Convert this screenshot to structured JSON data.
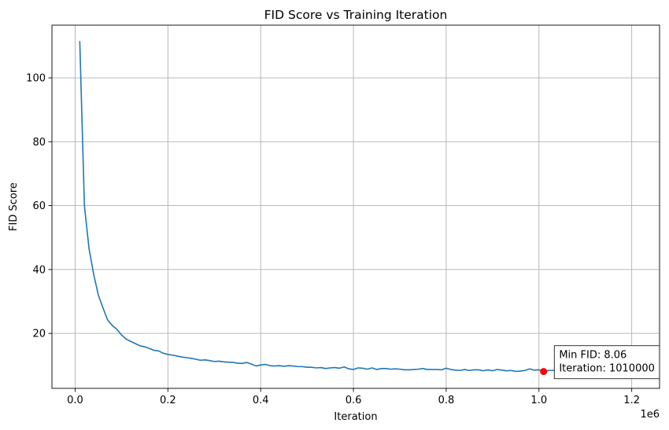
{
  "chart_data": {
    "type": "line",
    "title": "FID Score vs Training Iteration",
    "xlabel": "Iteration",
    "ylabel": "FID Score",
    "x_offset_text": "1e6",
    "xlim": [
      -50000,
      1260000
    ],
    "ylim": [
      2.8,
      116.5
    ],
    "x_ticks": [
      0,
      200000,
      400000,
      600000,
      800000,
      1000000,
      1200000
    ],
    "x_tick_labels": [
      "0.0",
      "0.2",
      "0.4",
      "0.6",
      "0.8",
      "1.0",
      "1.2"
    ],
    "y_ticks": [
      20,
      40,
      60,
      80,
      100
    ],
    "y_tick_labels": [
      "20",
      "40",
      "60",
      "80",
      "100"
    ],
    "grid": true,
    "line_color": "#1f77b4",
    "series": [
      {
        "x": [
          10000,
          20000,
          30000,
          40000,
          50000,
          60000,
          70000,
          80000,
          90000,
          100000,
          110000,
          120000,
          130000,
          140000,
          150000,
          160000,
          170000,
          180000,
          190000,
          200000,
          210000,
          220000,
          230000,
          240000,
          250000,
          260000,
          270000,
          280000,
          290000,
          300000,
          310000,
          320000,
          330000,
          340000,
          350000,
          360000,
          370000,
          380000,
          390000,
          400000,
          410000,
          420000,
          430000,
          440000,
          450000,
          460000,
          470000,
          480000,
          490000,
          500000,
          510000,
          520000,
          530000,
          540000,
          550000,
          560000,
          570000,
          580000,
          590000,
          600000,
          610000,
          620000,
          630000,
          640000,
          650000,
          660000,
          670000,
          680000,
          690000,
          700000,
          710000,
          720000,
          730000,
          740000,
          750000,
          760000,
          770000,
          780000,
          790000,
          800000,
          810000,
          820000,
          830000,
          840000,
          850000,
          860000,
          870000,
          880000,
          890000,
          900000,
          910000,
          920000,
          930000,
          940000,
          950000,
          960000,
          970000,
          980000,
          990000,
          1000000,
          1010000,
          1020000,
          1030000,
          1040000,
          1050000,
          1060000,
          1070000,
          1080000,
          1090000,
          1100000,
          1110000,
          1120000,
          1130000,
          1140000,
          1150000,
          1160000,
          1170000,
          1180000,
          1190000,
          1200000
        ],
        "y": [
          111.5,
          60.0,
          46.5,
          38.5,
          32.0,
          28.0,
          24.2,
          22.5,
          21.3,
          19.5,
          18.2,
          17.5,
          16.8,
          16.1,
          15.8,
          15.3,
          14.7,
          14.5,
          13.8,
          13.4,
          13.2,
          12.9,
          12.6,
          12.4,
          12.2,
          11.9,
          11.6,
          11.7,
          11.5,
          11.2,
          11.3,
          11.1,
          11.0,
          10.9,
          10.7,
          10.6,
          10.9,
          10.4,
          9.8,
          10.1,
          10.3,
          9.9,
          9.8,
          9.9,
          9.7,
          9.9,
          9.8,
          9.6,
          9.6,
          9.4,
          9.4,
          9.2,
          9.3,
          9.0,
          9.2,
          9.3,
          9.1,
          9.5,
          8.9,
          8.7,
          9.2,
          9.1,
          8.8,
          9.2,
          8.7,
          9.0,
          9.0,
          8.8,
          8.9,
          8.8,
          8.6,
          8.6,
          8.7,
          8.8,
          9.0,
          8.7,
          8.7,
          8.7,
          8.6,
          9.1,
          8.7,
          8.5,
          8.4,
          8.7,
          8.4,
          8.6,
          8.6,
          8.3,
          8.6,
          8.3,
          8.7,
          8.5,
          8.3,
          8.4,
          8.1,
          8.2,
          8.4,
          8.9,
          8.5,
          8.6,
          8.06,
          8.4,
          8.4,
          8.5,
          8.6,
          8.4,
          8.3,
          8.2,
          8.2,
          8.3,
          8.7,
          8.5,
          8.3,
          8.4,
          8.2,
          8.3,
          8.4,
          8.4,
          8.6,
          8.7
        ]
      }
    ],
    "min_point": {
      "x": 1010000,
      "y": 8.06,
      "color": "#ff0000"
    },
    "annotation": {
      "line1": "Min FID: 8.06",
      "line2": "Iteration: 1010000",
      "anchor_x": 1040000,
      "anchor_y": 11.0
    }
  }
}
